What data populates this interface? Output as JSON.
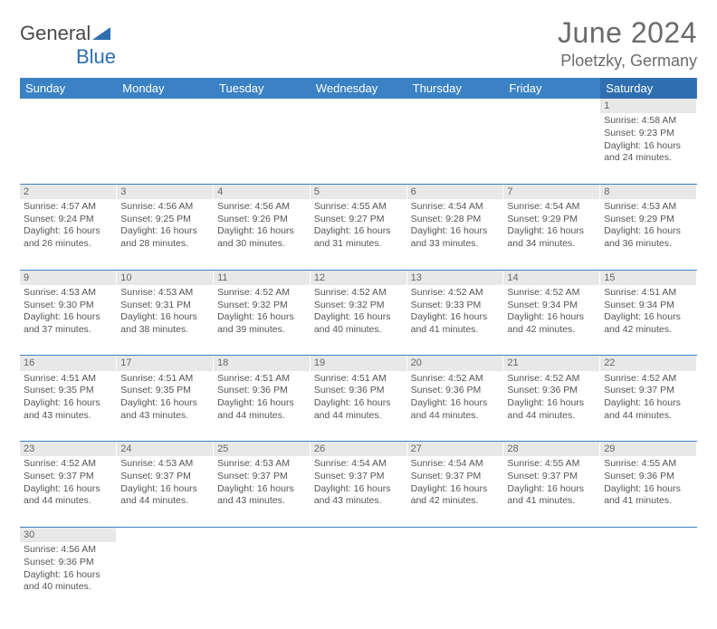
{
  "brand": {
    "part1": "General",
    "part2": "Blue"
  },
  "title": "June 2024",
  "location": "Ploetzky, Germany",
  "colors": {
    "header_bg": "#3b82c4",
    "header_bg_sat": "#2f6fb0",
    "daynum_bg": "#e8e8e8",
    "border": "#3b82c4",
    "text_muted": "#6b6b6b"
  },
  "dayNames": [
    "Sunday",
    "Monday",
    "Tuesday",
    "Wednesday",
    "Thursday",
    "Friday",
    "Saturday"
  ],
  "weeks": [
    [
      null,
      null,
      null,
      null,
      null,
      null,
      {
        "n": "1",
        "sr": "Sunrise: 4:58 AM",
        "ss": "Sunset: 9:23 PM",
        "d1": "Daylight: 16 hours",
        "d2": "and 24 minutes."
      }
    ],
    [
      {
        "n": "2",
        "sr": "Sunrise: 4:57 AM",
        "ss": "Sunset: 9:24 PM",
        "d1": "Daylight: 16 hours",
        "d2": "and 26 minutes."
      },
      {
        "n": "3",
        "sr": "Sunrise: 4:56 AM",
        "ss": "Sunset: 9:25 PM",
        "d1": "Daylight: 16 hours",
        "d2": "and 28 minutes."
      },
      {
        "n": "4",
        "sr": "Sunrise: 4:56 AM",
        "ss": "Sunset: 9:26 PM",
        "d1": "Daylight: 16 hours",
        "d2": "and 30 minutes."
      },
      {
        "n": "5",
        "sr": "Sunrise: 4:55 AM",
        "ss": "Sunset: 9:27 PM",
        "d1": "Daylight: 16 hours",
        "d2": "and 31 minutes."
      },
      {
        "n": "6",
        "sr": "Sunrise: 4:54 AM",
        "ss": "Sunset: 9:28 PM",
        "d1": "Daylight: 16 hours",
        "d2": "and 33 minutes."
      },
      {
        "n": "7",
        "sr": "Sunrise: 4:54 AM",
        "ss": "Sunset: 9:29 PM",
        "d1": "Daylight: 16 hours",
        "d2": "and 34 minutes."
      },
      {
        "n": "8",
        "sr": "Sunrise: 4:53 AM",
        "ss": "Sunset: 9:29 PM",
        "d1": "Daylight: 16 hours",
        "d2": "and 36 minutes."
      }
    ],
    [
      {
        "n": "9",
        "sr": "Sunrise: 4:53 AM",
        "ss": "Sunset: 9:30 PM",
        "d1": "Daylight: 16 hours",
        "d2": "and 37 minutes."
      },
      {
        "n": "10",
        "sr": "Sunrise: 4:53 AM",
        "ss": "Sunset: 9:31 PM",
        "d1": "Daylight: 16 hours",
        "d2": "and 38 minutes."
      },
      {
        "n": "11",
        "sr": "Sunrise: 4:52 AM",
        "ss": "Sunset: 9:32 PM",
        "d1": "Daylight: 16 hours",
        "d2": "and 39 minutes."
      },
      {
        "n": "12",
        "sr": "Sunrise: 4:52 AM",
        "ss": "Sunset: 9:32 PM",
        "d1": "Daylight: 16 hours",
        "d2": "and 40 minutes."
      },
      {
        "n": "13",
        "sr": "Sunrise: 4:52 AM",
        "ss": "Sunset: 9:33 PM",
        "d1": "Daylight: 16 hours",
        "d2": "and 41 minutes."
      },
      {
        "n": "14",
        "sr": "Sunrise: 4:52 AM",
        "ss": "Sunset: 9:34 PM",
        "d1": "Daylight: 16 hours",
        "d2": "and 42 minutes."
      },
      {
        "n": "15",
        "sr": "Sunrise: 4:51 AM",
        "ss": "Sunset: 9:34 PM",
        "d1": "Daylight: 16 hours",
        "d2": "and 42 minutes."
      }
    ],
    [
      {
        "n": "16",
        "sr": "Sunrise: 4:51 AM",
        "ss": "Sunset: 9:35 PM",
        "d1": "Daylight: 16 hours",
        "d2": "and 43 minutes."
      },
      {
        "n": "17",
        "sr": "Sunrise: 4:51 AM",
        "ss": "Sunset: 9:35 PM",
        "d1": "Daylight: 16 hours",
        "d2": "and 43 minutes."
      },
      {
        "n": "18",
        "sr": "Sunrise: 4:51 AM",
        "ss": "Sunset: 9:36 PM",
        "d1": "Daylight: 16 hours",
        "d2": "and 44 minutes."
      },
      {
        "n": "19",
        "sr": "Sunrise: 4:51 AM",
        "ss": "Sunset: 9:36 PM",
        "d1": "Daylight: 16 hours",
        "d2": "and 44 minutes."
      },
      {
        "n": "20",
        "sr": "Sunrise: 4:52 AM",
        "ss": "Sunset: 9:36 PM",
        "d1": "Daylight: 16 hours",
        "d2": "and 44 minutes."
      },
      {
        "n": "21",
        "sr": "Sunrise: 4:52 AM",
        "ss": "Sunset: 9:36 PM",
        "d1": "Daylight: 16 hours",
        "d2": "and 44 minutes."
      },
      {
        "n": "22",
        "sr": "Sunrise: 4:52 AM",
        "ss": "Sunset: 9:37 PM",
        "d1": "Daylight: 16 hours",
        "d2": "and 44 minutes."
      }
    ],
    [
      {
        "n": "23",
        "sr": "Sunrise: 4:52 AM",
        "ss": "Sunset: 9:37 PM",
        "d1": "Daylight: 16 hours",
        "d2": "and 44 minutes."
      },
      {
        "n": "24",
        "sr": "Sunrise: 4:53 AM",
        "ss": "Sunset: 9:37 PM",
        "d1": "Daylight: 16 hours",
        "d2": "and 44 minutes."
      },
      {
        "n": "25",
        "sr": "Sunrise: 4:53 AM",
        "ss": "Sunset: 9:37 PM",
        "d1": "Daylight: 16 hours",
        "d2": "and 43 minutes."
      },
      {
        "n": "26",
        "sr": "Sunrise: 4:54 AM",
        "ss": "Sunset: 9:37 PM",
        "d1": "Daylight: 16 hours",
        "d2": "and 43 minutes."
      },
      {
        "n": "27",
        "sr": "Sunrise: 4:54 AM",
        "ss": "Sunset: 9:37 PM",
        "d1": "Daylight: 16 hours",
        "d2": "and 42 minutes."
      },
      {
        "n": "28",
        "sr": "Sunrise: 4:55 AM",
        "ss": "Sunset: 9:37 PM",
        "d1": "Daylight: 16 hours",
        "d2": "and 41 minutes."
      },
      {
        "n": "29",
        "sr": "Sunrise: 4:55 AM",
        "ss": "Sunset: 9:36 PM",
        "d1": "Daylight: 16 hours",
        "d2": "and 41 minutes."
      }
    ],
    [
      {
        "n": "30",
        "sr": "Sunrise: 4:56 AM",
        "ss": "Sunset: 9:36 PM",
        "d1": "Daylight: 16 hours",
        "d2": "and 40 minutes."
      },
      null,
      null,
      null,
      null,
      null,
      null
    ]
  ]
}
